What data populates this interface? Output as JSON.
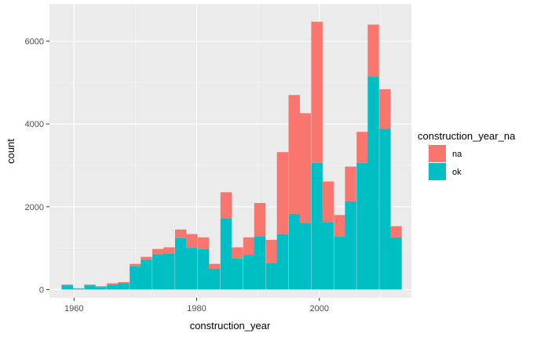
{
  "chart_data": {
    "type": "bar",
    "stacked": true,
    "xlabel": "construction_year",
    "ylabel": "count",
    "xlim": [
      1956,
      2015
    ],
    "ylim": [
      -200,
      6900
    ],
    "x_ticks": [
      1960,
      1980,
      2000
    ],
    "y_ticks": [
      0,
      2000,
      4000,
      6000
    ],
    "bin_width": 1.85,
    "grid": true,
    "legend": {
      "title": "construction_year_na",
      "placement": "right",
      "entries": [
        {
          "label": "na",
          "color": "#f8766d"
        },
        {
          "label": "ok",
          "color": "#00bfc4"
        }
      ]
    },
    "bins": [
      1958.9,
      1960.7,
      1962.6,
      1964.4,
      1966.3,
      1968.1,
      1970.0,
      1971.8,
      1973.7,
      1975.5,
      1977.4,
      1979.2,
      1981.1,
      1982.9,
      1984.8,
      1986.6,
      1988.5,
      1990.3,
      1992.2,
      1994.0,
      1995.9,
      1997.7,
      1999.6,
      2001.4,
      2003.3,
      2005.1,
      2007.0,
      2008.8,
      2010.7,
      2012.5
    ],
    "series": [
      {
        "name": "ok",
        "color": "#00bfc4",
        "values": [
          100,
          20,
          100,
          60,
          120,
          150,
          560,
          720,
          850,
          860,
          1240,
          1010,
          980,
          500,
          1720,
          750,
          840,
          1290,
          640,
          1340,
          1830,
          1610,
          3060,
          1630,
          1280,
          2130,
          3060,
          5140,
          3880,
          1260
        ]
      },
      {
        "name": "na",
        "color": "#f8766d",
        "values": [
          20,
          10,
          20,
          20,
          30,
          30,
          60,
          70,
          130,
          160,
          210,
          330,
          280,
          120,
          630,
          270,
          420,
          800,
          560,
          1980,
          2870,
          2650,
          3410,
          980,
          520,
          840,
          750,
          1260,
          960,
          270
        ]
      }
    ]
  },
  "colors": {
    "panel_background": "#ebebeb",
    "grid_major": "#ffffff",
    "ok": "#00bfc4",
    "na": "#f8766d"
  }
}
